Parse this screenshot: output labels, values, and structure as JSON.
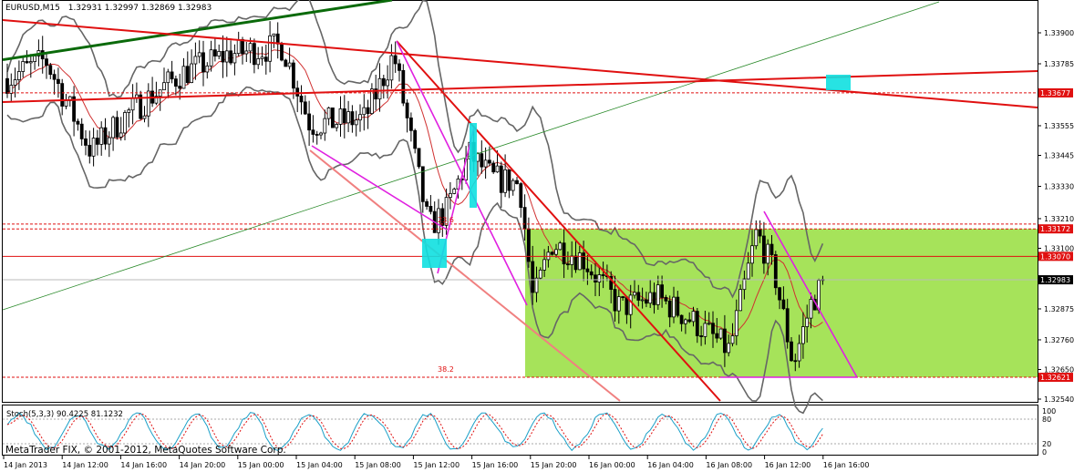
{
  "chart_data": {
    "type": "candlestick",
    "title": "EURUSD,M15",
    "ohlc_header": "1.32931 1.32997 1.32869 1.32983",
    "price_axis": {
      "min": 1.3249,
      "max": 1.3402,
      "ticks": [
        "1.33900",
        "1.33785",
        "1.33555",
        "1.33445",
        "1.33330",
        "1.33210",
        "1.33100",
        "1.32875",
        "1.32760",
        "1.32650",
        "1.32540"
      ]
    },
    "price_labels": [
      {
        "value": "1.33677",
        "price": 1.33677,
        "color": "#e01010"
      },
      {
        "value": "1.33172",
        "price": 1.33172,
        "color": "#e01010"
      },
      {
        "value": "1.33070",
        "price": 1.3307,
        "color": "#e01010"
      },
      {
        "value": "1.32983",
        "price": 1.32983,
        "color": "#000000"
      },
      {
        "value": "1.32621",
        "price": 1.32621,
        "color": "#e01010"
      }
    ],
    "time_labels": [
      "14 Jan 2013",
      "14 Jan 12:00",
      "14 Jan 16:00",
      "14 Jan 20:00",
      "15 Jan 00:00",
      "15 Jan 04:00",
      "15 Jan 08:00",
      "15 Jan 12:00",
      "15 Jan 16:00",
      "15 Jan 20:00",
      "16 Jan 00:00",
      "16 Jan 04:00",
      "16 Jan 08:00",
      "16 Jan 12:00",
      "16 Jan 16:00"
    ],
    "fib_labels": [
      {
        "text": "23.6",
        "price": 1.3319
      },
      {
        "text": "38.2",
        "price": 1.32635
      }
    ],
    "stochastic": {
      "label": "Stoch(5,3,3) 90.4225 81.1232",
      "ticks": [
        "100",
        "80",
        "20",
        "0"
      ]
    },
    "copyright": "MetaTrader FIX, © 2001-2012, MetaQuotes Software Corp.",
    "colors": {
      "bull": "#000000",
      "bear": "#000000",
      "rect": "#a6e35a",
      "trend": "#e01010",
      "fan": "#e020e0",
      "boll": "#666666",
      "ma": "#d03030"
    }
  }
}
